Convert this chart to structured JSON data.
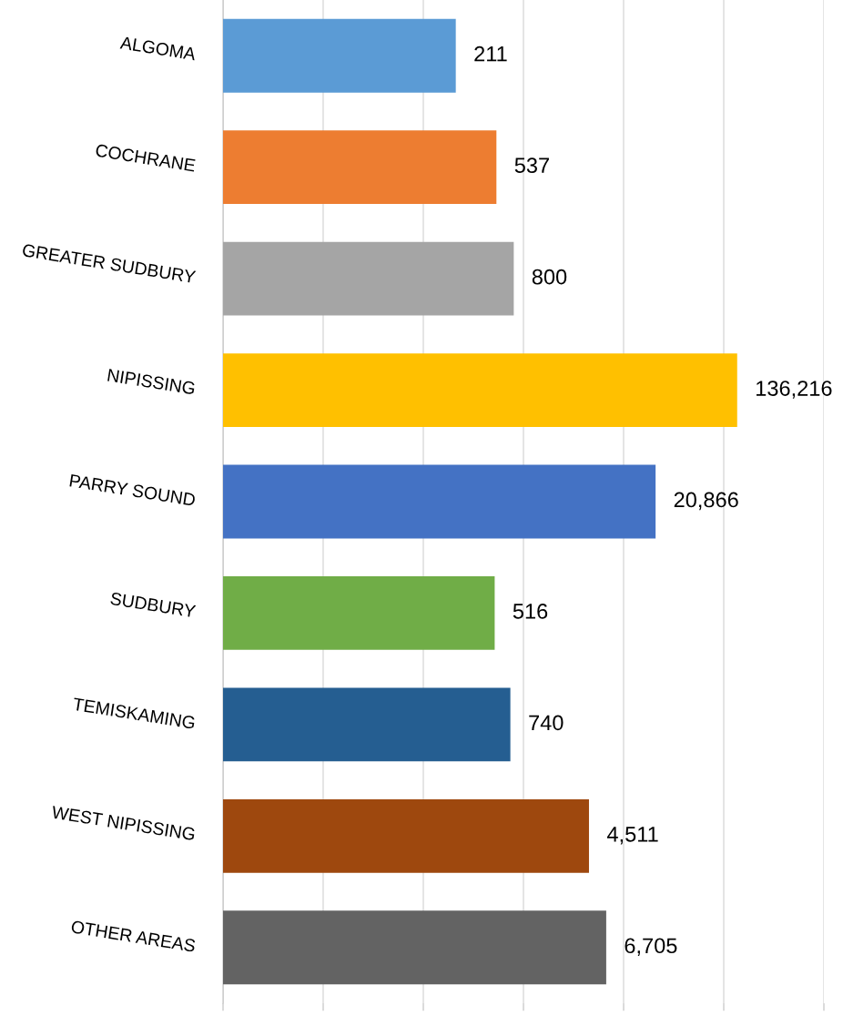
{
  "chart_data": {
    "type": "bar",
    "orientation": "horizontal",
    "log": "x",
    "categories": [
      "ALGOMA",
      "COCHRANE",
      "GREATER SUDBURY",
      "NIPISSING",
      "PARRY SOUND",
      "SUDBURY",
      "TEMISKAMING",
      "WEST NIPISSING",
      "OTHER AREAS"
    ],
    "values": [
      211,
      537,
      800,
      136216,
      20866,
      516,
      740,
      4511,
      6705
    ],
    "colors": [
      "#5b9bd5",
      "#ed7d31",
      "#a5a5a5",
      "#ffc000",
      "#4472c4",
      "#70ad47",
      "#255e91",
      "#9e480e",
      "#636363"
    ],
    "value_labels": [
      "211",
      "537",
      "800",
      "136,216",
      "20,866",
      "516",
      "740",
      "4,511",
      "6,705"
    ],
    "xlim": [
      1,
      1000000
    ],
    "xticks": [
      {
        "value": 1,
        "label": null
      },
      {
        "value": 10,
        "label": null
      },
      {
        "value": 100,
        "label": null
      },
      {
        "value": 1000,
        "label": null
      },
      {
        "value": 10000,
        "label": null
      },
      {
        "value": 100000,
        "label": null
      },
      {
        "value": 1000000,
        "label": null
      }
    ],
    "grid": "x",
    "tick_labels": "y"
  }
}
